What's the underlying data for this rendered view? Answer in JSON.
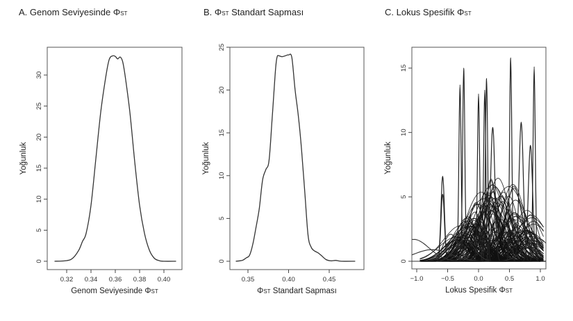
{
  "chart_data": [
    {
      "type": "line",
      "panel": "A",
      "title": "A. Genom Seviyesinde ΦST",
      "title_main": "A. Genom Seviyesinde Φ",
      "title_sub": "ST",
      "xlabel": "Genom Seviyesinde ΦST",
      "xlabel_main": "Genom Seviyesinde Φ",
      "xlabel_sub": "ST",
      "ylabel": "Yoğunluk",
      "xlim": [
        0.305,
        0.415
      ],
      "ylim": [
        0,
        34
      ],
      "xticks": [
        "0.32",
        "0.34",
        "0.36",
        "0.38",
        "0.40"
      ],
      "yticks": [
        "0",
        "5",
        "10",
        "15",
        "20",
        "25",
        "30"
      ],
      "grid": false,
      "series": [
        {
          "name": "density",
          "x": [
            0.31,
            0.32,
            0.325,
            0.33,
            0.333,
            0.336,
            0.34,
            0.344,
            0.348,
            0.352,
            0.355,
            0.358,
            0.36,
            0.362,
            0.364,
            0.366,
            0.368,
            0.372,
            0.376,
            0.38,
            0.384,
            0.388,
            0.392,
            0.396,
            0.4,
            0.41
          ],
          "y": [
            0.0,
            0.1,
            0.5,
            1.8,
            3.2,
            4.5,
            9.0,
            16.5,
            24.0,
            29.5,
            32.5,
            33.1,
            33.0,
            32.6,
            32.9,
            32.2,
            30.0,
            24.0,
            16.0,
            9.0,
            4.5,
            1.8,
            0.5,
            0.1,
            0.0,
            0.0
          ]
        }
      ]
    },
    {
      "type": "line",
      "panel": "B",
      "title": "B. ΦST Standart Sapması",
      "title_pre": "B. Φ",
      "title_sub": "ST",
      "title_post": " Standart Sapması",
      "xlabel": "ΦST Standart Sapması",
      "xlabel_pre": "Φ",
      "xlabel_sub": "ST",
      "xlabel_post": " Standart Sapması",
      "ylabel": "Yoğunluk",
      "xlim": [
        0.328,
        0.488
      ],
      "ylim": [
        0,
        25
      ],
      "xticks": [
        "0.35",
        "0.40",
        "0.45"
      ],
      "yticks": [
        "0",
        "5",
        "10",
        "15",
        "20",
        "25"
      ],
      "grid": false,
      "series": [
        {
          "name": "density",
          "x": [
            0.335,
            0.343,
            0.348,
            0.352,
            0.356,
            0.36,
            0.364,
            0.368,
            0.372,
            0.376,
            0.38,
            0.384,
            0.386,
            0.388,
            0.392,
            0.396,
            0.4,
            0.404,
            0.408,
            0.412,
            0.416,
            0.42,
            0.424,
            0.428,
            0.432,
            0.436,
            0.44,
            0.446,
            0.452,
            0.458,
            0.465,
            0.482
          ],
          "y": [
            0.0,
            0.1,
            0.4,
            0.7,
            2.0,
            4.0,
            6.2,
            9.5,
            10.7,
            11.8,
            17.0,
            22.5,
            23.9,
            24.0,
            23.9,
            24.0,
            24.1,
            23.8,
            20.0,
            17.0,
            13.0,
            8.0,
            3.0,
            1.6,
            1.2,
            1.0,
            0.7,
            0.2,
            0.05,
            0.1,
            0.0,
            0.0
          ]
        }
      ]
    },
    {
      "type": "line",
      "panel": "C",
      "title": "C. Lokus Spesifik ΦST",
      "title_main": "C. Lokus Spesifik Φ",
      "title_sub": "ST",
      "xlabel": "Lokus Spesifik ΦST",
      "xlabel_main": "Lokus Spesifik Φ",
      "xlabel_sub": "ST",
      "ylabel": "Yoğunluk",
      "xlim": [
        -1.08,
        1.06
      ],
      "ylim": [
        0,
        16.5
      ],
      "xticks": [
        "-1.0",
        "-0.5",
        "0.0",
        "0.5",
        "1.0"
      ],
      "yticks": [
        "0",
        "5",
        "10",
        "15"
      ],
      "grid": false,
      "note": "Many overlapping per-locus density curves; notable peaks listed",
      "peaks": [
        {
          "x": -0.58,
          "y": 6.6
        },
        {
          "x": -0.58,
          "y": 5.2
        },
        {
          "x": -0.3,
          "y": 13.7
        },
        {
          "x": -0.24,
          "y": 15.0
        },
        {
          "x": 0.0,
          "y": 13.0
        },
        {
          "x": 0.1,
          "y": 13.3
        },
        {
          "x": 0.13,
          "y": 14.2
        },
        {
          "x": 0.23,
          "y": 10.4
        },
        {
          "x": 0.52,
          "y": 15.8
        },
        {
          "x": 0.69,
          "y": 10.8
        },
        {
          "x": 0.84,
          "y": 9.0
        },
        {
          "x": 0.9,
          "y": 15.1
        }
      ]
    }
  ]
}
